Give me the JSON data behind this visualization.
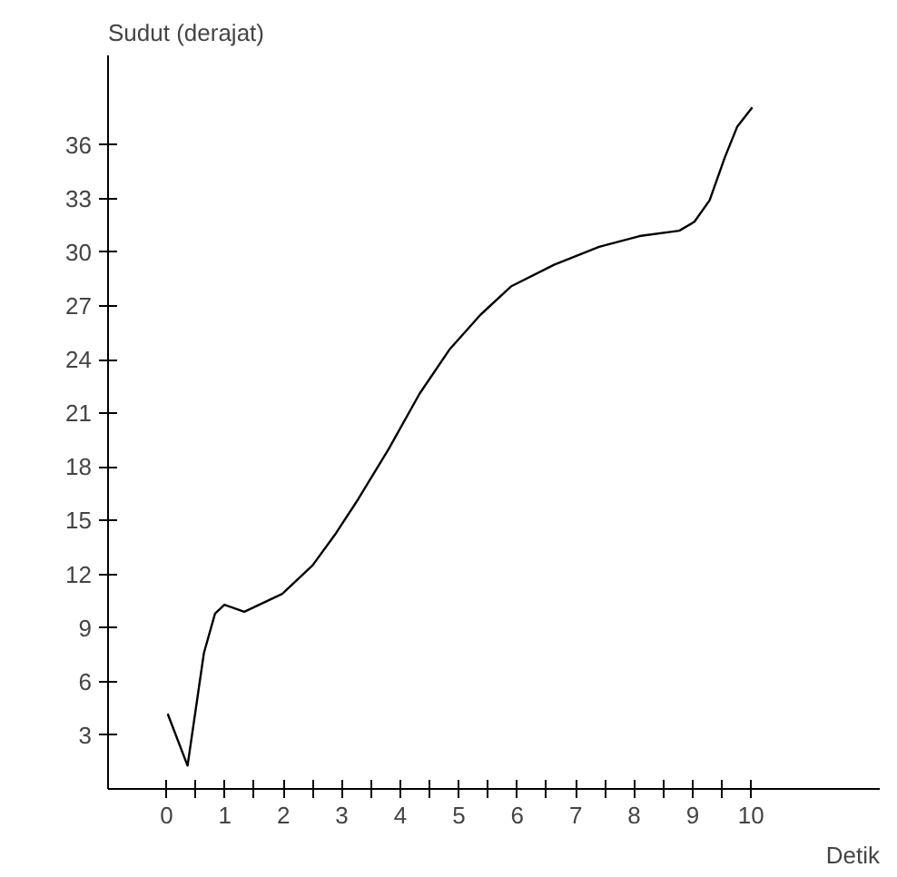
{
  "chart_data": {
    "type": "line",
    "xlabel": "Detik",
    "ylabel": "Sudut (derajat)",
    "x": [
      0.02,
      0.36,
      0.64,
      0.83,
      0.99,
      1.33,
      1.98,
      2.5,
      2.9,
      3.28,
      3.8,
      4.33,
      4.85,
      5.37,
      5.9,
      6.63,
      7.4,
      8.09,
      8.77,
      9.03,
      9.29,
      9.55,
      9.76,
      10.02
    ],
    "series": [
      {
        "color": "#000000",
        "values": [
          4.2,
          1.3,
          7.6,
          9.8,
          10.3,
          9.9,
          10.9,
          12.5,
          14.3,
          16.2,
          19.0,
          22.1,
          24.6,
          26.5,
          28.1,
          29.3,
          30.3,
          30.9,
          31.2,
          31.7,
          32.9,
          35.3,
          37.0,
          38.1
        ]
      }
    ],
    "xlim": [
      -1,
      12.2
    ],
    "ylim": [
      0,
      41
    ],
    "xticks": [
      0,
      {
        "value": 0.5,
        "label": null
      },
      1,
      {
        "value": 1.5,
        "label": null
      },
      2,
      {
        "value": 2.5,
        "label": null
      },
      3,
      {
        "value": 3.5,
        "label": null
      },
      4,
      {
        "value": 4.5,
        "label": null
      },
      5,
      {
        "value": 5.5,
        "label": null
      },
      6,
      {
        "value": 6.5,
        "label": null
      },
      7,
      {
        "value": 7.5,
        "label": null
      },
      8,
      {
        "value": 8.5,
        "label": null
      },
      9,
      {
        "value": 9.5,
        "label": null
      },
      10
    ],
    "yticks": [
      3,
      6,
      9,
      12,
      15,
      18,
      21,
      24,
      27,
      30,
      33,
      36
    ],
    "grid": false,
    "marker": "none",
    "line_style": "solid"
  }
}
